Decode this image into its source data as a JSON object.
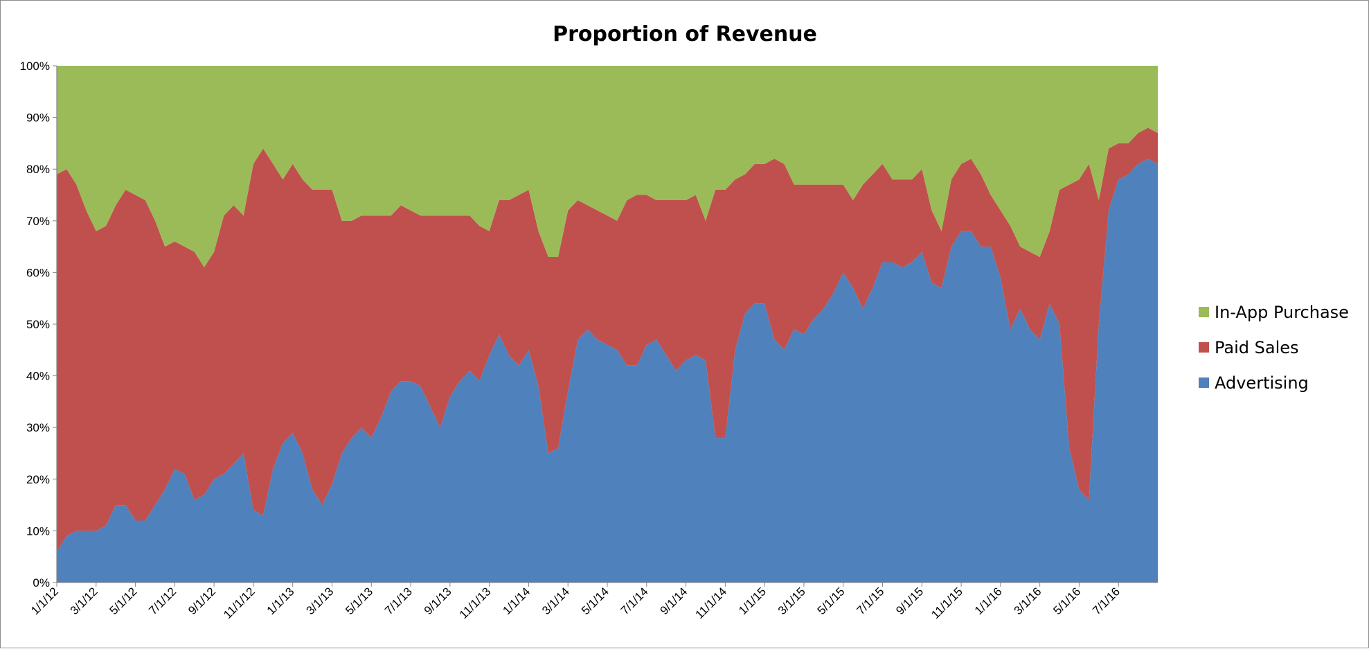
{
  "chart_data": {
    "type": "area",
    "stacked": "percent",
    "title": "Proportion of Revenue",
    "xlabel": "",
    "ylabel": "",
    "ylim": [
      0,
      100
    ],
    "yticks": [
      "0%",
      "10%",
      "20%",
      "30%",
      "40%",
      "50%",
      "60%",
      "70%",
      "80%",
      "90%",
      "100%"
    ],
    "xticks": [
      "1/1/12",
      "3/1/12",
      "5/1/12",
      "7/1/12",
      "9/1/12",
      "11/1/12",
      "1/1/13",
      "3/1/13",
      "5/1/13",
      "7/1/13",
      "9/1/13",
      "11/1/13",
      "1/1/14",
      "3/1/14",
      "5/1/14",
      "7/1/14",
      "9/1/14",
      "11/1/14",
      "1/1/15",
      "3/1/15",
      "5/1/15",
      "7/1/15",
      "9/1/15",
      "11/1/15",
      "1/1/16",
      "3/1/16",
      "5/1/16",
      "7/1/16"
    ],
    "x_unit": "months since 1/1/12",
    "x_range": [
      0,
      56
    ],
    "legend_position": "right",
    "x": [
      0,
      0.5,
      1,
      1.5,
      2,
      2.5,
      3,
      3.5,
      4,
      4.5,
      5,
      5.5,
      6,
      6.5,
      7,
      7.5,
      8,
      8.5,
      9,
      9.5,
      10,
      10.5,
      11,
      11.5,
      12,
      12.5,
      13,
      13.5,
      14,
      14.5,
      15,
      15.5,
      16,
      16.5,
      17,
      17.5,
      18,
      18.5,
      19,
      19.5,
      20,
      20.5,
      21,
      21.5,
      22,
      22.5,
      23,
      23.5,
      24,
      24.5,
      25,
      25.5,
      26,
      26.5,
      27,
      27.5,
      28,
      28.5,
      29,
      29.5,
      30,
      30.5,
      31,
      31.5,
      32,
      32.5,
      33,
      33.5,
      34,
      34.5,
      35,
      35.5,
      36,
      36.5,
      37,
      37.5,
      38,
      38.5,
      39,
      39.5,
      40,
      40.5,
      41,
      41.5,
      42,
      42.5,
      43,
      43.5,
      44,
      44.5,
      45,
      45.5,
      46,
      46.5,
      47,
      47.5,
      48,
      48.5,
      49,
      49.5,
      50,
      50.5,
      51,
      51.5,
      52,
      52.5,
      53,
      53.5,
      54,
      54.5,
      55,
      55.5,
      56
    ],
    "series": [
      {
        "name": "Advertising",
        "color": "#4f81bd",
        "values": [
          6,
          9,
          10,
          10,
          10,
          11,
          15,
          15,
          12,
          12,
          15,
          18,
          22,
          21,
          16,
          17,
          20,
          21,
          23,
          25,
          14,
          13,
          22,
          27,
          29,
          25,
          18,
          15,
          19,
          25,
          28,
          30,
          28,
          32,
          37,
          39,
          39,
          38,
          34,
          30,
          36,
          39,
          41,
          39,
          44,
          48,
          44,
          42,
          45,
          38,
          25,
          26,
          37,
          47,
          49,
          47,
          46,
          45,
          42,
          42,
          46,
          47,
          44,
          41,
          43,
          44,
          43,
          28,
          28,
          45,
          52,
          54,
          54,
          47,
          45,
          49,
          48,
          51,
          53,
          56,
          60,
          57,
          53,
          57,
          62,
          62,
          61,
          62,
          64,
          58,
          57,
          65,
          68,
          68,
          65,
          65,
          59,
          49,
          53,
          49,
          47,
          54,
          50,
          26,
          18,
          16,
          50,
          72,
          78,
          79,
          81,
          82,
          81
        ]
      },
      {
        "name": "Paid Sales",
        "color": "#c0504d",
        "values": [
          73,
          71,
          67,
          62,
          58,
          58,
          58,
          61,
          63,
          62,
          55,
          47,
          44,
          44,
          48,
          44,
          44,
          50,
          50,
          46,
          67,
          71,
          59,
          51,
          52,
          53,
          58,
          61,
          57,
          45,
          42,
          41,
          43,
          39,
          34,
          34,
          33,
          33,
          37,
          41,
          35,
          32,
          30,
          30,
          24,
          26,
          30,
          33,
          31,
          30,
          38,
          37,
          35,
          27,
          24,
          25,
          25,
          25,
          32,
          33,
          29,
          27,
          30,
          33,
          31,
          31,
          27,
          48,
          48,
          33,
          27,
          27,
          27,
          35,
          36,
          28,
          29,
          26,
          24,
          21,
          17,
          17,
          24,
          22,
          19,
          16,
          17,
          16,
          16,
          14,
          11,
          13,
          13,
          14,
          14,
          10,
          13,
          20,
          12,
          15,
          16,
          14,
          26,
          51,
          60,
          65,
          24,
          12,
          7,
          6,
          6,
          6,
          6
        ]
      },
      {
        "name": "In-App Purchase",
        "color": "#9bbb59",
        "values": [
          21,
          20,
          23,
          28,
          32,
          31,
          27,
          24,
          25,
          26,
          30,
          35,
          34,
          35,
          36,
          39,
          36,
          29,
          27,
          29,
          19,
          16,
          19,
          22,
          19,
          22,
          24,
          24,
          24,
          30,
          30,
          29,
          29,
          29,
          29,
          27,
          28,
          29,
          29,
          29,
          29,
          29,
          29,
          31,
          32,
          26,
          26,
          25,
          24,
          32,
          37,
          37,
          28,
          26,
          27,
          28,
          29,
          30,
          26,
          25,
          25,
          26,
          26,
          26,
          26,
          25,
          30,
          24,
          24,
          22,
          21,
          19,
          19,
          18,
          19,
          23,
          23,
          23,
          23,
          23,
          23,
          26,
          23,
          21,
          19,
          22,
          22,
          22,
          20,
          28,
          32,
          22,
          19,
          18,
          21,
          25,
          28,
          31,
          35,
          36,
          37,
          32,
          24,
          23,
          22,
          19,
          26,
          16,
          15,
          15,
          13,
          12,
          13
        ]
      }
    ]
  }
}
